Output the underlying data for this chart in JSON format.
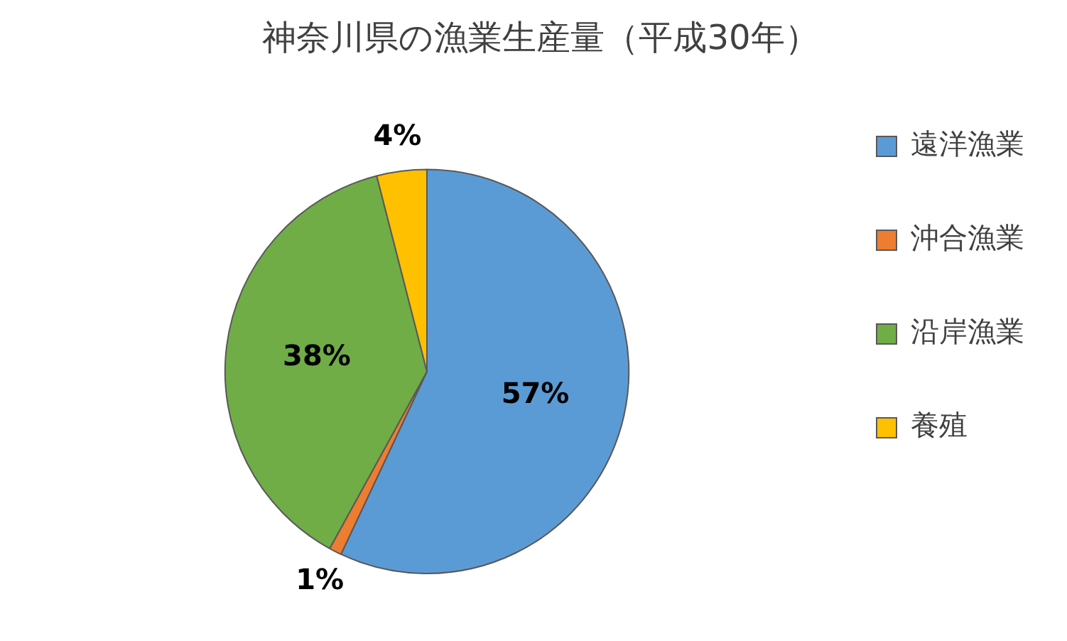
{
  "chart_data": {
    "type": "pie",
    "title": "神奈川県の漁業生産量（平成30年）",
    "categories": [
      "遠洋漁業",
      "沖合漁業",
      "沿岸漁業",
      "養殖"
    ],
    "values": [
      57,
      1,
      38,
      4
    ],
    "colors": [
      "#5b9bd5",
      "#ed7d31",
      "#70ad47",
      "#ffc000"
    ],
    "value_labels": [
      "57%",
      "1%",
      "38%",
      "4%"
    ],
    "legend": "right"
  }
}
